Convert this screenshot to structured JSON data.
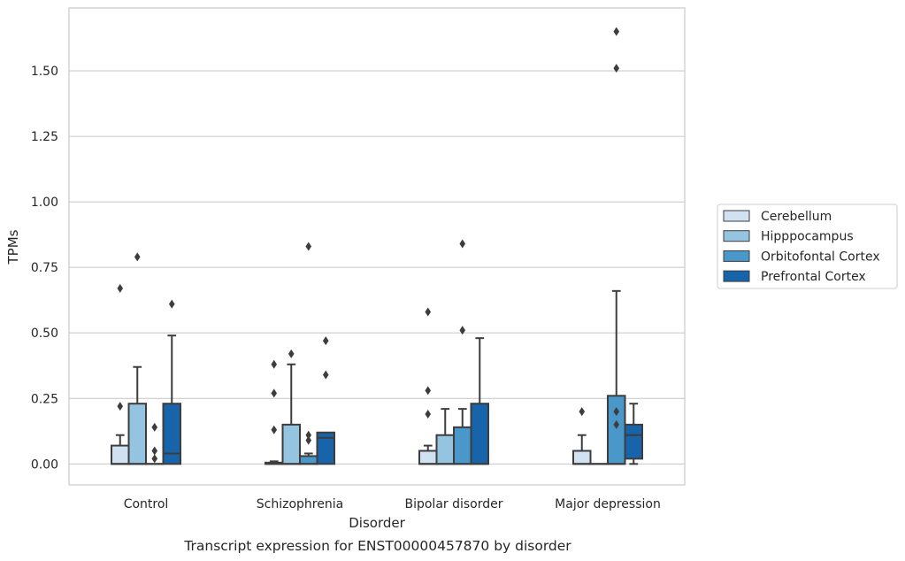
{
  "chart_data": {
    "type": "boxplot",
    "caption": "Transcript expression for ENST00000457870 by disorder",
    "xlabel": "Disorder",
    "ylabel": "TPMs",
    "categories": [
      "Control",
      "Schizophrenia",
      "Bipolar disorder",
      "Major depression"
    ],
    "ylim": [
      -0.08,
      1.74
    ],
    "yticks": [
      0.0,
      0.25,
      0.5,
      0.75,
      1.0,
      1.25,
      1.5
    ],
    "ytick_labels": [
      "0.00",
      "0.25",
      "0.50",
      "0.75",
      "1.00",
      "1.25",
      "1.50"
    ],
    "grid": true,
    "legend_position": "right, outside",
    "series": [
      {
        "name": "Cerebellum",
        "color": "#d0e1f2",
        "boxes": [
          {
            "whisker_low": 0,
            "q1": 0,
            "median": 0,
            "q3": 0.07,
            "whisker_high": 0.11,
            "outliers": [
              0.22,
              0.67
            ]
          },
          {
            "whisker_low": 0,
            "q1": 0,
            "median": 0,
            "q3": 0.005,
            "whisker_high": 0.01,
            "outliers": [
              0.13,
              0.27,
              0.38
            ]
          },
          {
            "whisker_low": 0,
            "q1": 0,
            "median": 0,
            "q3": 0.05,
            "whisker_high": 0.07,
            "outliers": [
              0.19,
              0.28,
              0.58
            ]
          },
          {
            "whisker_low": 0,
            "q1": 0,
            "median": 0,
            "q3": 0.05,
            "whisker_high": 0.11,
            "outliers": [
              0.2
            ]
          }
        ]
      },
      {
        "name": "Hipppocampus",
        "color": "#94c4df",
        "boxes": [
          {
            "whisker_low": 0,
            "q1": 0,
            "median": 0,
            "q3": 0.23,
            "whisker_high": 0.37,
            "outliers": [
              0.79
            ]
          },
          {
            "whisker_low": 0,
            "q1": 0,
            "median": 0,
            "q3": 0.15,
            "whisker_high": 0.38,
            "outliers": [
              0.42
            ]
          },
          {
            "whisker_low": 0,
            "q1": 0,
            "median": 0,
            "q3": 0.11,
            "whisker_high": 0.21,
            "outliers": []
          },
          {
            "whisker_low": 0,
            "q1": 0,
            "median": 0,
            "q3": 0,
            "whisker_high": 0,
            "outliers": []
          }
        ]
      },
      {
        "name": "Orbitofontal Cortex",
        "color": "#4a98c9",
        "boxes": [
          {
            "whisker_low": 0,
            "q1": 0,
            "median": 0,
            "q3": 0,
            "whisker_high": 0,
            "outliers": [
              0.02,
              0.05,
              0.14
            ]
          },
          {
            "whisker_low": 0,
            "q1": 0,
            "median": 0,
            "q3": 0.03,
            "whisker_high": 0.04,
            "outliers": [
              0.09,
              0.11,
              0.83
            ]
          },
          {
            "whisker_low": 0,
            "q1": 0,
            "median": 0,
            "q3": 0.14,
            "whisker_high": 0.21,
            "outliers": [
              0.51,
              0.84
            ]
          },
          {
            "whisker_low": 0,
            "q1": 0,
            "median": 0,
            "q3": 0.26,
            "whisker_high": 0.66,
            "outliers": [
              0.15,
              0.2,
              1.51,
              1.65
            ]
          }
        ]
      },
      {
        "name": "Prefrontal Cortex",
        "color": "#1764ab",
        "boxes": [
          {
            "whisker_low": 0,
            "q1": 0,
            "median": 0.04,
            "q3": 0.23,
            "whisker_high": 0.49,
            "outliers": [
              0.61
            ]
          },
          {
            "whisker_low": 0,
            "q1": 0,
            "median": 0.1,
            "q3": 0.12,
            "whisker_high": 0.12,
            "outliers": [
              0.34,
              0.47
            ]
          },
          {
            "whisker_low": 0,
            "q1": 0,
            "median": 0,
            "q3": 0.23,
            "whisker_high": 0.48,
            "outliers": []
          },
          {
            "whisker_low": 0,
            "q1": 0.02,
            "median": 0.11,
            "q3": 0.15,
            "whisker_high": 0.23,
            "outliers": []
          }
        ]
      }
    ]
  }
}
